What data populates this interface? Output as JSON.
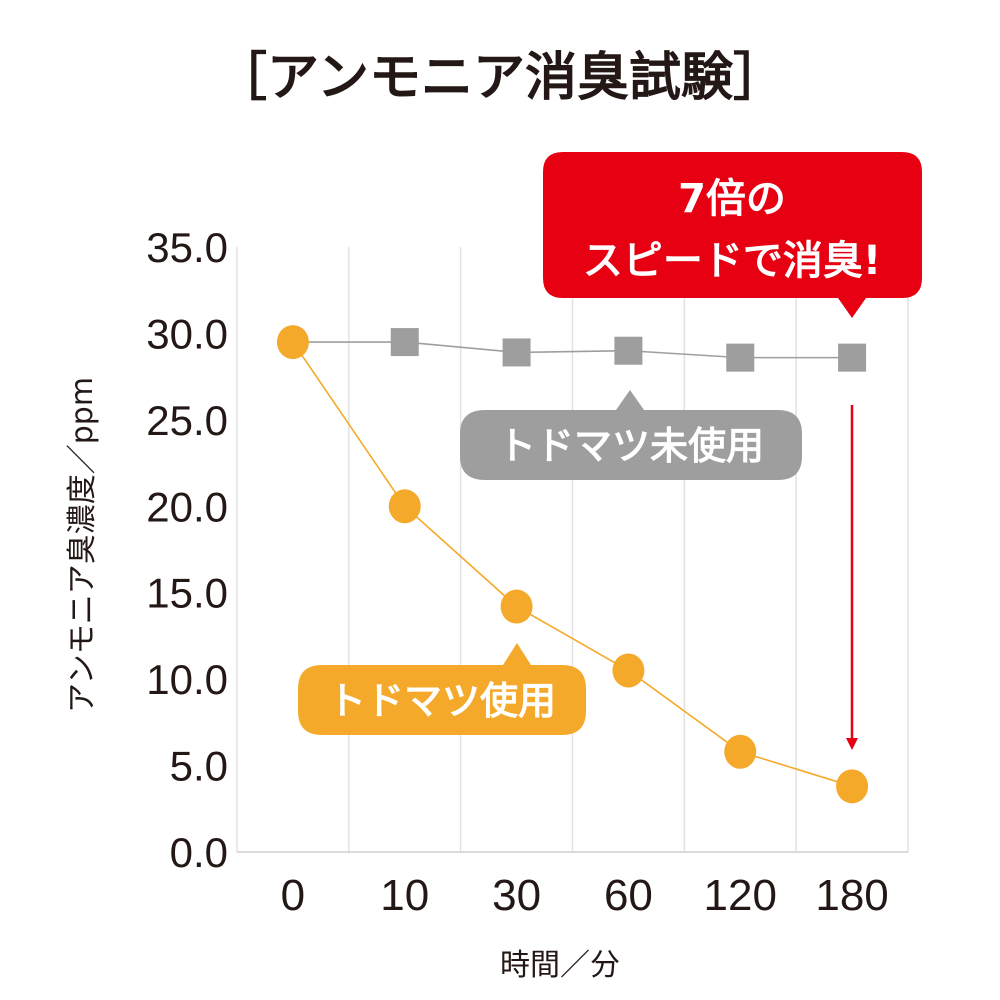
{
  "chart_data": {
    "type": "line",
    "title": "［アンモニア消臭試験］",
    "xlabel": "時間／分",
    "ylabel": "アンモニア臭濃度／ppm",
    "categories": [
      "0",
      "10",
      "30",
      "60",
      "120",
      "180"
    ],
    "yticks": [
      "0.0",
      "5.0",
      "10.0",
      "15.0",
      "20.0",
      "25.0",
      "30.0",
      "35.0"
    ],
    "ylim": [
      0,
      35
    ],
    "grid": "vertical",
    "series": [
      {
        "name": "トドマツ未使用",
        "marker": "square",
        "color": "#9e9e9e",
        "values": [
          29.5,
          29.5,
          28.9,
          29.0,
          28.6,
          28.6
        ]
      },
      {
        "name": "トドマツ使用",
        "marker": "circle",
        "color": "#f5a92a",
        "values": [
          29.5,
          20.0,
          14.2,
          10.5,
          5.8,
          3.8
        ]
      }
    ],
    "annotation": {
      "line1": "7倍の",
      "line2": "スピードで消臭!",
      "color": "#e60012"
    }
  }
}
